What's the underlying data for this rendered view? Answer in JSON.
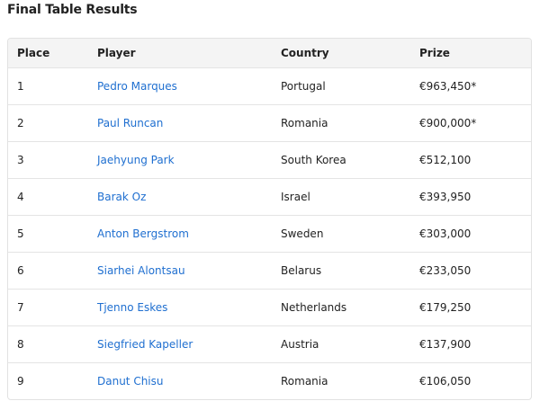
{
  "title": "Final Table Results",
  "columns": [
    "Place",
    "Player",
    "Country",
    "Prize"
  ],
  "rows": [
    {
      "place": "1",
      "player": "Pedro Marques",
      "country": "Portugal",
      "prize": "€963,450*"
    },
    {
      "place": "2",
      "player": "Paul Runcan",
      "country": "Romania",
      "prize": "€900,000*"
    },
    {
      "place": "3",
      "player": "Jaehyung Park",
      "country": "South Korea",
      "prize": "€512,100"
    },
    {
      "place": "4",
      "player": "Barak Oz",
      "country": "Israel",
      "prize": "€393,950"
    },
    {
      "place": "5",
      "player": "Anton Bergstrom",
      "country": "Sweden",
      "prize": "€303,000"
    },
    {
      "place": "6",
      "player": "Siarhei Alontsau",
      "country": "Belarus",
      "prize": "€233,050"
    },
    {
      "place": "7",
      "player": "Tjenno Eskes",
      "country": "Netherlands",
      "prize": "€179,250"
    },
    {
      "place": "8",
      "player": "Siegfried Kapeller",
      "country": "Austria",
      "prize": "€137,900"
    },
    {
      "place": "9",
      "player": "Danut Chisu",
      "country": "Romania",
      "prize": "€106,050"
    }
  ],
  "colors": {
    "link": "#1f6fd0",
    "header_bg": "#f4f4f4",
    "border": "#e2e2e2"
  }
}
